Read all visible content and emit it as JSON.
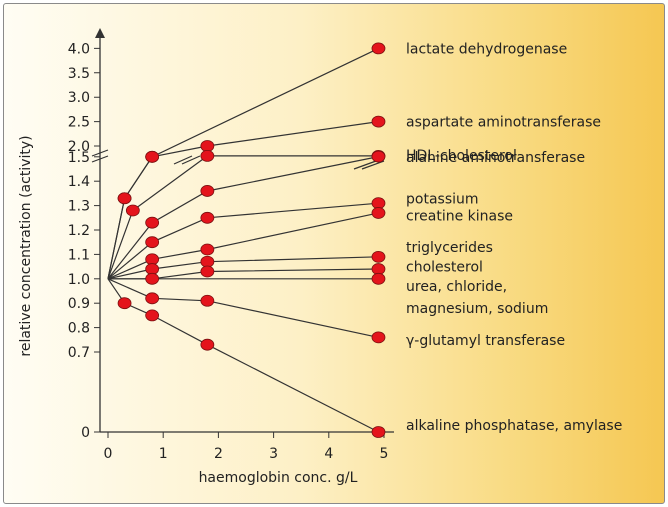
{
  "chart_data": {
    "type": "line",
    "xlabel": "haemoglobin conc. g/L",
    "ylabel": "relative concentration (activity)",
    "x_ticks": [
      "0",
      "1",
      "2",
      "3",
      "4",
      "5"
    ],
    "y_ticks": [
      "0",
      "0.7",
      "0.8",
      "0.9",
      "1.0",
      "1.1",
      "1.2",
      "1.3",
      "1.4",
      "1.5",
      "2.0",
      "2.5",
      "3.0",
      "3.5",
      "4.0"
    ],
    "xlim": [
      -0.2,
      5.3
    ],
    "y_axis_break": "between 1.5 and 2.0",
    "y_axis_note": "nonlinear y scale: 0 to 0.7 compressed; 0.7 to 1.5 in 0.1 steps; 2.0 to 4.0 in 0.5 steps",
    "origin": [
      0,
      1.0
    ],
    "colors": {
      "marker": "#e4141c",
      "line": "#333333"
    },
    "series": [
      {
        "name": "lactate dehydrogenase",
        "x": [
          0,
          0.3,
          0.8,
          4.9
        ],
        "y": [
          1.0,
          1.33,
          1.5,
          4.0
        ]
      },
      {
        "name": "aspartate aminotransferase",
        "x": [
          0,
          0.3,
          0.8,
          1.8,
          4.9
        ],
        "y": [
          1.0,
          1.33,
          1.5,
          2.0,
          2.5
        ]
      },
      {
        "name": "HDL-cholesterol",
        "x": [
          0,
          0.45,
          1.8,
          4.9
        ],
        "y": [
          1.0,
          1.28,
          1.55,
          1.55
        ]
      },
      {
        "name": "alanine aminotransferase",
        "x": [
          0,
          0.8,
          1.8,
          4.9
        ],
        "y": [
          1.0,
          1.23,
          1.36,
          1.52
        ]
      },
      {
        "name": "potassium",
        "x": [
          0,
          0.8,
          1.8,
          4.9
        ],
        "y": [
          1.0,
          1.15,
          1.25,
          1.31
        ]
      },
      {
        "name": "creatine kinase",
        "x": [
          0,
          0.8,
          1.8,
          4.9
        ],
        "y": [
          1.0,
          1.08,
          1.12,
          1.27
        ]
      },
      {
        "name": "triglycerides",
        "x": [
          0,
          0.8,
          1.8,
          4.9
        ],
        "y": [
          1.0,
          1.04,
          1.07,
          1.09
        ]
      },
      {
        "name": "cholesterol",
        "x": [
          0,
          0.8,
          1.8,
          4.9
        ],
        "y": [
          1.0,
          1.0,
          1.03,
          1.04
        ]
      },
      {
        "name": "urea, chloride, magnesium, sodium",
        "x": [
          0,
          4.9
        ],
        "y": [
          1.0,
          1.0
        ]
      },
      {
        "name": "γ-glutamyl transferase",
        "x": [
          0,
          0.8,
          1.8,
          4.9
        ],
        "y": [
          1.0,
          0.92,
          0.91,
          0.76
        ]
      },
      {
        "name": "alkaline phosphatase, amylase",
        "x": [
          0,
          0.3,
          0.8,
          1.8,
          4.9
        ],
        "y": [
          1.0,
          0.9,
          0.85,
          0.73,
          0.0
        ]
      }
    ],
    "labels": [
      {
        "text": "lactate dehydrogenase",
        "y": 4.0
      },
      {
        "text": "aspartate aminotransferase",
        "y": 2.5
      },
      {
        "text": "HDL-cholesterol",
        "y": 1.58
      },
      {
        "text": "alanine aminotransferase",
        "y": 1.5
      },
      {
        "text": "potassium",
        "y": 1.33
      },
      {
        "text": "creatine kinase",
        "y": 1.26
      },
      {
        "text": "triglycerides",
        "y": 1.13
      },
      {
        "text": "cholesterol",
        "y": 1.05
      },
      {
        "text": "urea, chloride,",
        "y": 0.97
      },
      {
        "text": "magnesium, sodium",
        "y": 0.88
      },
      {
        "text": "γ-glutamyl transferase",
        "y": 0.75
      },
      {
        "text": "alkaline phosphatase, amylase",
        "y": 0.06
      }
    ]
  }
}
